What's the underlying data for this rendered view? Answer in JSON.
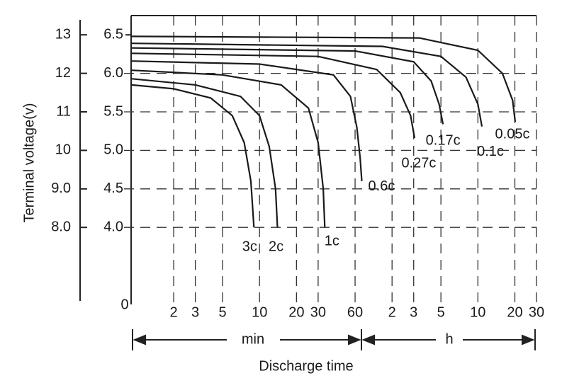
{
  "chart_data": {
    "type": "line",
    "y_axis_title": "Terminal voltage(v)",
    "x_axis_title": "Discharge time",
    "origin_label": "0",
    "range_labels": [
      "min",
      "h"
    ],
    "log_x": true,
    "grid": true,
    "xlim": [
      0.9,
      1800
    ],
    "xticks": [
      2,
      3,
      5,
      10,
      20,
      30,
      60,
      {
        "value": 120,
        "label": "2"
      },
      {
        "value": 180,
        "label": "3"
      },
      {
        "value": 300,
        "label": "5"
      },
      {
        "value": 600,
        "label": "10"
      },
      {
        "value": 1200,
        "label": "20"
      },
      {
        "value": 1800,
        "label": "30"
      }
    ],
    "ylim": [
      3.0,
      6.75
    ],
    "yticks": [
      {
        "value": 4,
        "label": "4.0"
      },
      4.5,
      {
        "value": 5,
        "label": "5.0"
      },
      5.5,
      {
        "value": 6,
        "label": "6.0"
      },
      6.5
    ],
    "y2lim": [
      6.0,
      13.5
    ],
    "y2ticks": [
      {
        "value": 8,
        "label": "8.0"
      },
      {
        "value": 9,
        "label": "9.0"
      },
      10,
      11,
      12,
      13
    ],
    "series": [
      {
        "name": "3c",
        "color": "#1a1a1a",
        "x": [
          0.9,
          2,
          4,
          6,
          7.5,
          8.5,
          9
        ],
        "values": [
          5.85,
          5.8,
          5.68,
          5.45,
          5.1,
          4.6,
          4.0
        ]
      },
      {
        "name": "2c",
        "color": "#1a1a1a",
        "x": [
          0.9,
          3,
          7,
          10,
          12,
          13.5,
          14
        ],
        "values": [
          5.93,
          5.85,
          5.7,
          5.45,
          5.05,
          4.5,
          4.0
        ]
      },
      {
        "name": "1c",
        "color": "#1a1a1a",
        "x": [
          0.9,
          5,
          15,
          25,
          30,
          33,
          34
        ],
        "values": [
          6.04,
          5.98,
          5.85,
          5.55,
          5.1,
          4.5,
          4.0
        ]
      },
      {
        "name": "0.6c",
        "color": "#1a1a1a",
        "x": [
          0.9,
          10,
          40,
          55,
          62,
          66,
          68
        ],
        "values": [
          6.16,
          6.12,
          5.98,
          5.7,
          5.3,
          4.9,
          4.6
        ]
      },
      {
        "name": "0.27c",
        "color": "#1a1a1a",
        "x": [
          0.9,
          30,
          90,
          140,
          170,
          183
        ],
        "values": [
          6.26,
          6.22,
          6.05,
          5.75,
          5.45,
          5.16
        ]
      },
      {
        "name": "0.17c",
        "color": "#1a1a1a",
        "x": [
          0.9,
          60,
          180,
          250,
          290,
          312
        ],
        "values": [
          6.33,
          6.29,
          6.15,
          5.9,
          5.6,
          5.34
        ]
      },
      {
        "name": "0.1c",
        "color": "#1a1a1a",
        "x": [
          0.9,
          100,
          300,
          480,
          600,
          647
        ],
        "values": [
          6.39,
          6.35,
          6.22,
          5.95,
          5.6,
          5.31
        ]
      },
      {
        "name": "0.05c",
        "color": "#1a1a1a",
        "x": [
          0.9,
          200,
          600,
          950,
          1150,
          1208
        ],
        "values": [
          6.48,
          6.46,
          6.3,
          6.0,
          5.65,
          5.37
        ]
      }
    ]
  }
}
